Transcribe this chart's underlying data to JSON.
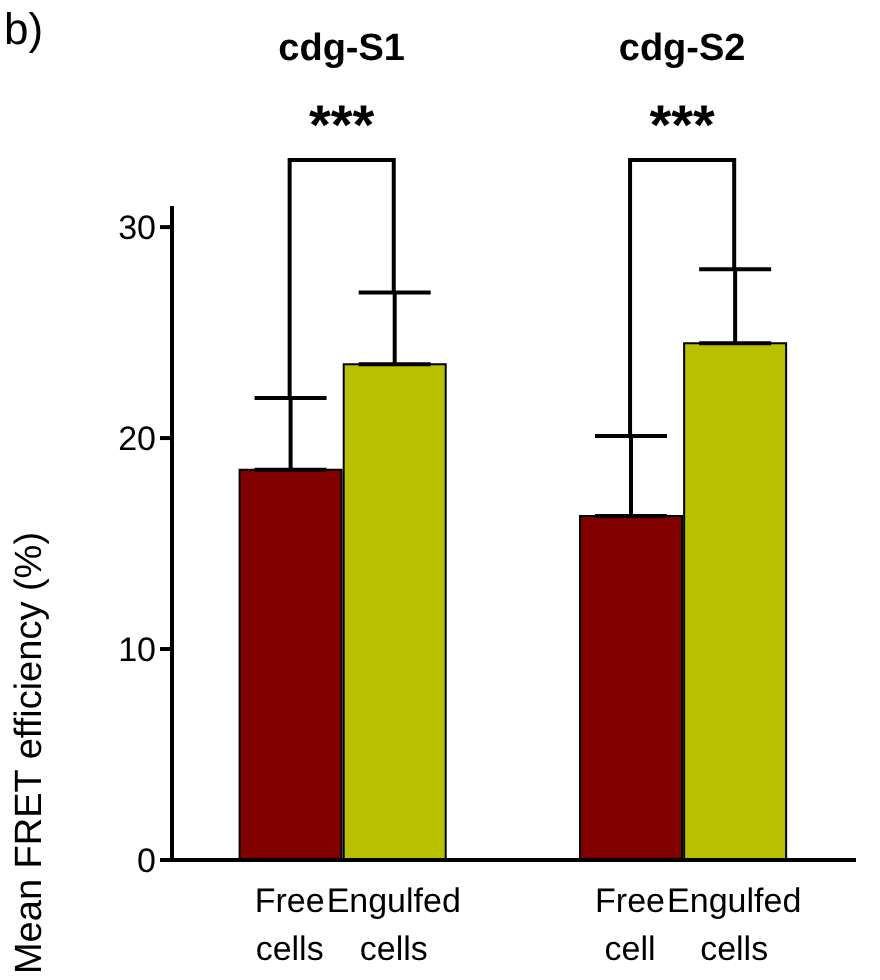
{
  "chart_data": {
    "type": "bar",
    "ylabel": "Mean FRET efficiency (%)",
    "categories": [
      "Free cells",
      "Engulfed cells",
      "Free cell",
      "Engulfed cells"
    ],
    "values": [
      18.5,
      23.5,
      16.3,
      24.5
    ],
    "colors": [
      "#800000",
      "#b9c000",
      "#800000",
      "#b9c000"
    ],
    "errors": [
      [
        18.5,
        21.9
      ],
      [
        23.5,
        26.9
      ],
      [
        16.3,
        20.1
      ],
      [
        24.5,
        28.0
      ]
    ],
    "ylim": [
      0,
      31
    ],
    "yticks": [
      0,
      10,
      20,
      30
    ],
    "annotations": [
      "b)",
      "cdg-S1",
      "cdg-S2",
      "***",
      "***"
    ]
  }
}
